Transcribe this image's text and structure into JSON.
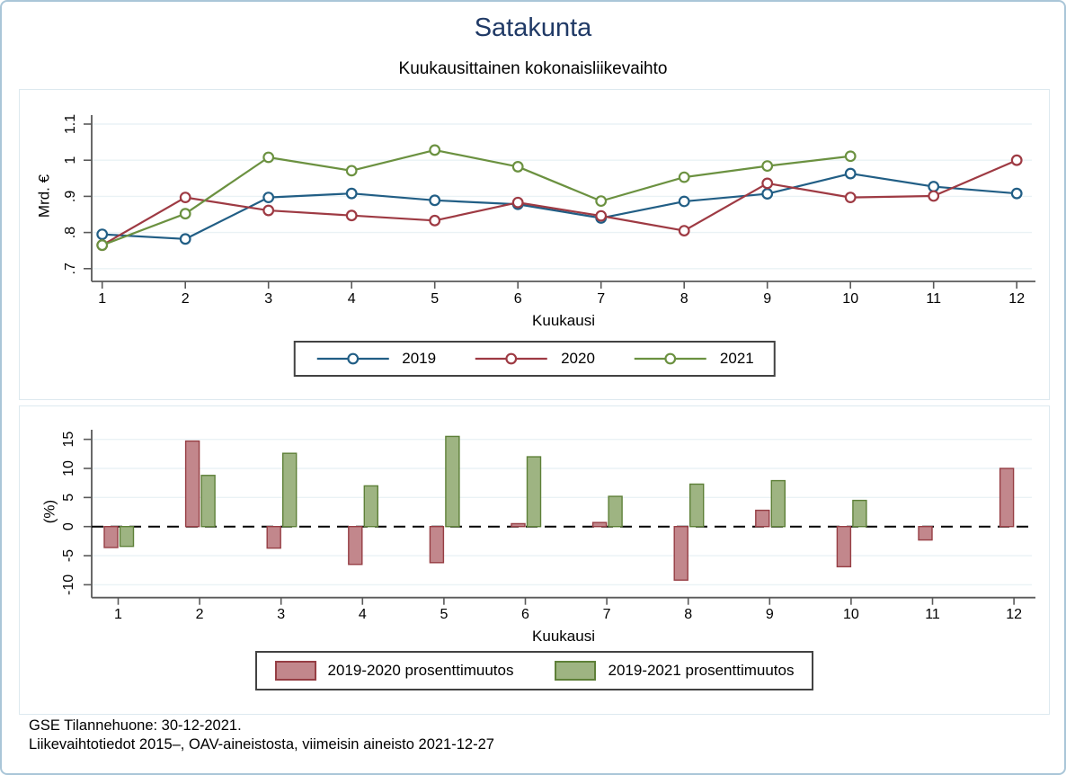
{
  "header": {
    "title": "Satakunta",
    "subtitle": "Kuukausittainen kokonaisliikevaihto"
  },
  "footer": {
    "line1": "GSE Tilannehuone: 30-12-2021.",
    "line2": "Liikevaihtotiedot 2015–, OAV-aineistosta, viimeisin aineisto 2021-12-27"
  },
  "colors": {
    "title": "#203a66",
    "series_2019": "#215e85",
    "series_2020": "#9e3a43",
    "series_2021": "#6b9140",
    "bar_2019_2020_fill": "#c2878c",
    "bar_2019_2020_border": "#963e44",
    "bar_2019_2021_fill": "#9eb482",
    "bar_2019_2021_border": "#5e8038",
    "gridline": "#eaf2f5",
    "axis": "#5a5a5a"
  },
  "chart_data": [
    {
      "type": "line",
      "title": "Kuukausittainen kokonaisliikevaihto",
      "x": [
        1,
        2,
        3,
        4,
        5,
        6,
        7,
        8,
        9,
        10,
        11,
        12
      ],
      "xlabel": "Kuukausi",
      "ylabel": "Mrd. €",
      "ylim": [
        0.65,
        1.15
      ],
      "yticks": [
        {
          "v": 0.7,
          "label": ".7"
        },
        {
          "v": 0.8,
          "label": ".8"
        },
        {
          "v": 0.9,
          "label": ".9"
        },
        {
          "v": 1.0,
          "label": "1"
        },
        {
          "v": 1.1,
          "label": "1.1"
        }
      ],
      "grid": true,
      "legend_position": "bottom-center",
      "marker": "hollow-circle",
      "series": [
        {
          "name": "2019",
          "color": "#215e85",
          "values": [
            0.795,
            0.782,
            0.897,
            0.908,
            0.889,
            0.878,
            0.84,
            0.886,
            0.907,
            0.963,
            0.927,
            0.908
          ]
        },
        {
          "name": "2020",
          "color": "#9e3a43",
          "values": [
            0.765,
            0.897,
            0.861,
            0.847,
            0.833,
            0.883,
            0.846,
            0.805,
            0.936,
            0.897,
            0.901,
            1.0
          ]
        },
        {
          "name": "2021",
          "color": "#6b9140",
          "values": [
            0.765,
            0.852,
            1.008,
            0.971,
            1.028,
            0.982,
            0.887,
            0.953,
            0.984,
            1.011,
            null,
            null
          ]
        }
      ]
    },
    {
      "type": "bar",
      "x": [
        1,
        2,
        3,
        4,
        5,
        6,
        7,
        8,
        9,
        10,
        11,
        12
      ],
      "xlabel": "Kuukausi",
      "ylabel": "(%)",
      "ylim": [
        -13,
        17
      ],
      "yticks": [
        {
          "v": 15,
          "label": "15"
        },
        {
          "v": 10,
          "label": "10"
        },
        {
          "v": 5,
          "label": "5"
        },
        {
          "v": 0,
          "label": "0"
        },
        {
          "v": -5,
          "label": "-5"
        },
        {
          "v": -10,
          "label": "-10"
        }
      ],
      "grid": true,
      "zero_line": "dashed",
      "legend_position": "bottom-center",
      "series": [
        {
          "name": "2019-2020 prosenttimuutos",
          "fill": "#c2878c",
          "border": "#963e44",
          "values": [
            -3.6,
            14.7,
            -3.7,
            -6.5,
            -6.2,
            0.5,
            0.7,
            -9.2,
            2.8,
            -6.9,
            -2.3,
            10.0
          ]
        },
        {
          "name": "2019-2021 prosenttimuutos",
          "fill": "#9eb482",
          "border": "#5e8038",
          "values": [
            -3.4,
            8.8,
            12.6,
            7.0,
            15.5,
            12.0,
            5.2,
            7.3,
            7.9,
            4.5,
            null,
            null
          ]
        }
      ]
    }
  ]
}
